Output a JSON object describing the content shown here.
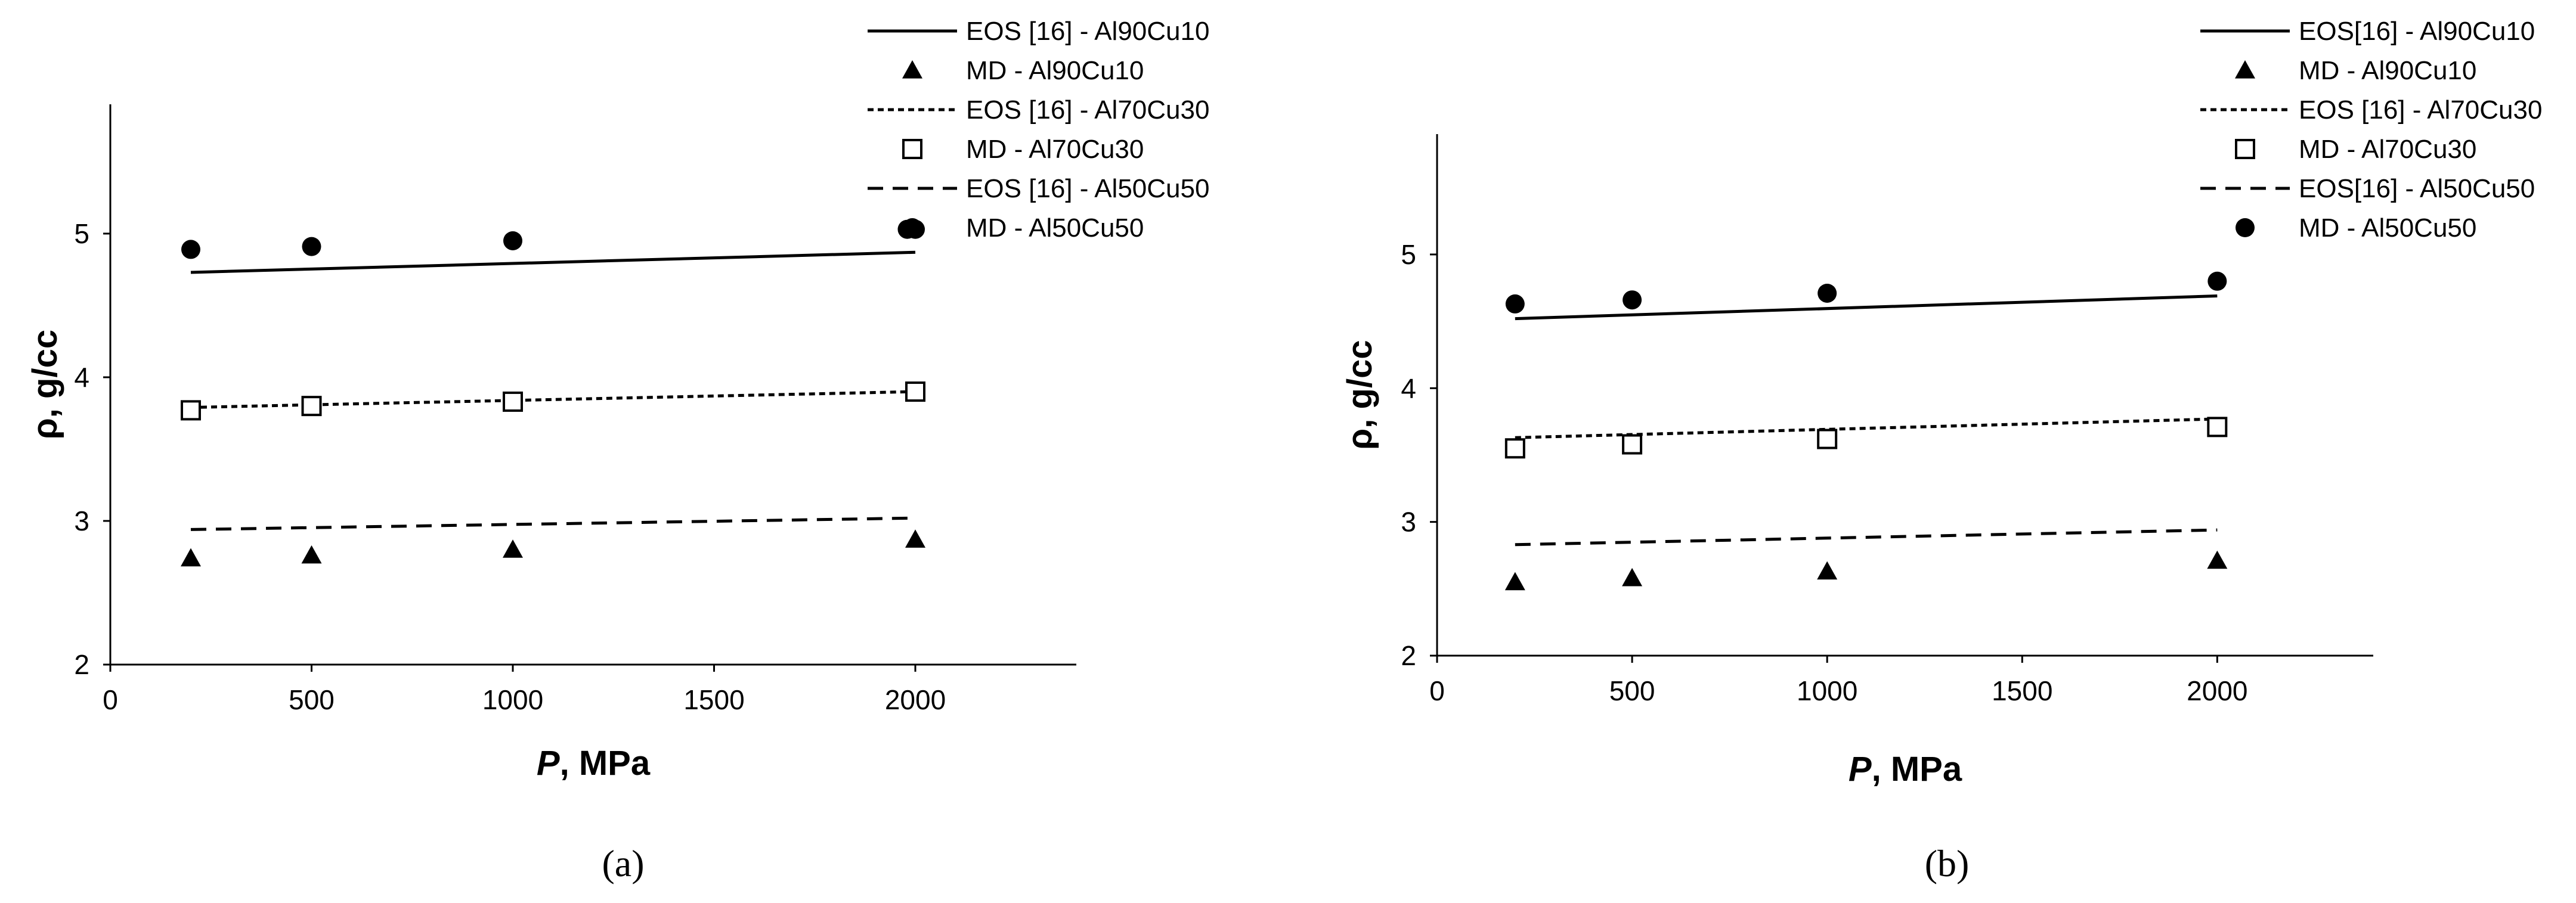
{
  "chart_data": [
    {
      "type": "scatter",
      "caption": "(a)",
      "xlabel": "P, MPa",
      "xlabel_italic": "P",
      "xlabel_rest": ", MPa",
      "ylabel": "ρ, g/cc",
      "xlim": [
        0,
        2400
      ],
      "ylim": [
        2,
        5.9
      ],
      "xticks": [
        0,
        500,
        1000,
        1500,
        2000
      ],
      "yticks": [
        2,
        3,
        4,
        5
      ],
      "grid": false,
      "legend": "top-right, outside plot area",
      "series": [
        {
          "name": "EOS [16] - Al90Cu10",
          "kind": "line",
          "style": "solid",
          "x": [
            200,
            2000
          ],
          "y": [
            4.73,
            4.87
          ]
        },
        {
          "name": "MD - Al90Cu10",
          "kind": "marker",
          "marker": "triangle",
          "x": [
            200,
            500,
            1000,
            2000
          ],
          "y": [
            2.74,
            2.76,
            2.8,
            2.87
          ]
        },
        {
          "name": "EOS [16] - Al70Cu30",
          "kind": "line",
          "style": "dotted",
          "x": [
            200,
            2000
          ],
          "y": [
            3.79,
            3.9
          ]
        },
        {
          "name": "MD - Al70Cu30",
          "kind": "marker",
          "marker": "square",
          "x": [
            200,
            500,
            1000,
            2000
          ],
          "y": [
            3.77,
            3.8,
            3.83,
            3.9
          ]
        },
        {
          "name": "EOS [16] - Al50Cu50",
          "kind": "line",
          "style": "dashed",
          "x": [
            200,
            2000
          ],
          "y": [
            2.94,
            3.02
          ]
        },
        {
          "name": "MD - Al50Cu50",
          "kind": "marker",
          "marker": "circle",
          "x": [
            200,
            500,
            1000,
            1980,
            2000
          ],
          "y": [
            4.89,
            4.91,
            4.95,
            5.03,
            5.03
          ]
        }
      ]
    },
    {
      "type": "scatter",
      "caption": "(b)",
      "xlabel": "P, MPa",
      "xlabel_italic": "P",
      "xlabel_rest": ", MPa",
      "ylabel": "ρ, g/cc",
      "xlim": [
        0,
        2400
      ],
      "ylim": [
        2,
        5.9
      ],
      "xticks": [
        0,
        500,
        1000,
        1500,
        2000
      ],
      "yticks": [
        2,
        3,
        4,
        5
      ],
      "grid": false,
      "legend": "top-right, outside plot area",
      "series": [
        {
          "name": "EOS[16] - Al90Cu10",
          "kind": "line",
          "style": "solid",
          "x": [
            200,
            2000
          ],
          "y": [
            4.52,
            4.69
          ]
        },
        {
          "name": "MD - Al90Cu10",
          "kind": "marker",
          "marker": "triangle",
          "x": [
            200,
            500,
            1000,
            2000
          ],
          "y": [
            2.55,
            2.58,
            2.63,
            2.71
          ]
        },
        {
          "name": "EOS [16] - Al70Cu30",
          "kind": "line",
          "style": "dotted",
          "x": [
            200,
            2000
          ],
          "y": [
            3.63,
            3.77
          ]
        },
        {
          "name": "MD - Al70Cu30",
          "kind": "marker",
          "marker": "square",
          "x": [
            200,
            500,
            1000,
            2000
          ],
          "y": [
            3.55,
            3.58,
            3.62,
            3.71
          ]
        },
        {
          "name": "EOS[16] - Al50Cu50",
          "kind": "line",
          "style": "dashed",
          "x": [
            200,
            2000
          ],
          "y": [
            2.83,
            2.94
          ]
        },
        {
          "name": "MD - Al50Cu50",
          "kind": "marker",
          "marker": "circle",
          "x": [
            200,
            500,
            1000,
            2000
          ],
          "y": [
            4.63,
            4.66,
            4.71,
            4.8
          ]
        }
      ]
    }
  ]
}
